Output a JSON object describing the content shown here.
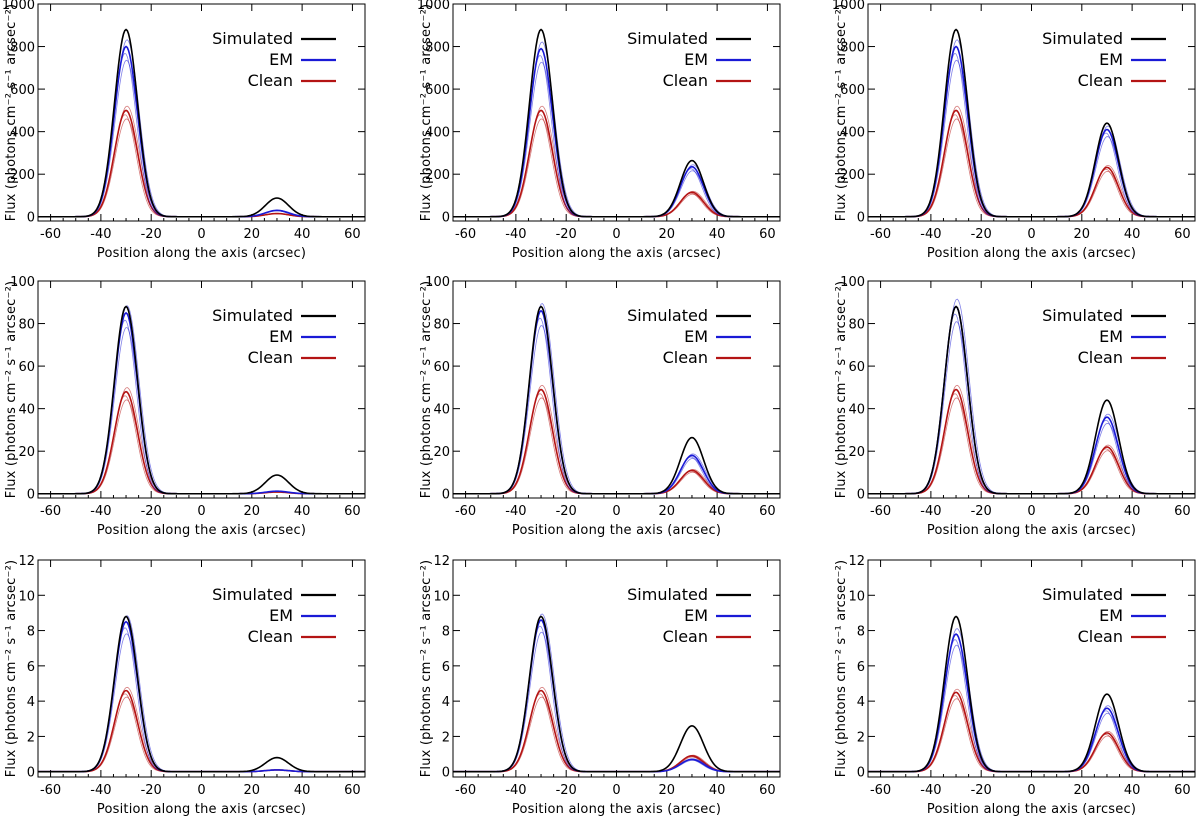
{
  "figure": {
    "xlabel": "Position along the axis (arcsec)",
    "ylabel": "Flux (photons cm⁻² s⁻¹ arcsec⁻²)",
    "legend": [
      {
        "name": "Simulated",
        "color": "#000000"
      },
      {
        "name": "EM",
        "color": "#1a1ad6"
      },
      {
        "name": "Clean",
        "color": "#b41414"
      }
    ]
  },
  "chart_data": [
    {
      "type": "line",
      "row": 0,
      "col": 0,
      "xlim": [
        -65,
        65
      ],
      "ylim": [
        -20,
        1000
      ],
      "yticks": [
        0,
        200,
        400,
        600,
        800,
        1000
      ],
      "xticks": [
        -60,
        -40,
        -20,
        0,
        20,
        40,
        60
      ],
      "xlabel": "Position along the axis (arcsec)",
      "ylabel": "Flux (photons cm⁻² s⁻¹ arcsec⁻²)",
      "peak_positions": [
        -30,
        30
      ],
      "series": [
        {
          "name": "Simulated",
          "peaks": [
            880,
            88
          ]
        },
        {
          "name": "EM",
          "peaks": [
            800,
            30
          ]
        },
        {
          "name": "Clean",
          "peaks": [
            500,
            15
          ]
        }
      ]
    },
    {
      "type": "line",
      "row": 0,
      "col": 1,
      "xlim": [
        -65,
        65
      ],
      "ylim": [
        -20,
        1000
      ],
      "yticks": [
        0,
        200,
        400,
        600,
        800,
        1000
      ],
      "xticks": [
        -60,
        -40,
        -20,
        0,
        20,
        40,
        60
      ],
      "xlabel": "Position along the axis (arcsec)",
      "ylabel": "Flux (photons cm⁻² s⁻¹ arcsec⁻²)",
      "peak_positions": [
        -30,
        30
      ],
      "series": [
        {
          "name": "Simulated",
          "peaks": [
            880,
            264
          ]
        },
        {
          "name": "EM",
          "peaks": [
            790,
            235
          ]
        },
        {
          "name": "Clean",
          "peaks": [
            500,
            115
          ]
        }
      ]
    },
    {
      "type": "line",
      "row": 0,
      "col": 2,
      "xlim": [
        -65,
        65
      ],
      "ylim": [
        -20,
        1000
      ],
      "yticks": [
        0,
        200,
        400,
        600,
        800,
        1000
      ],
      "xticks": [
        -60,
        -40,
        -20,
        0,
        20,
        40,
        60
      ],
      "xlabel": "Position along the axis (arcsec)",
      "ylabel": "Flux (photons cm⁻² s⁻¹ arcsec⁻²)",
      "peak_positions": [
        -30,
        30
      ],
      "series": [
        {
          "name": "Simulated",
          "peaks": [
            880,
            440
          ]
        },
        {
          "name": "EM",
          "peaks": [
            800,
            410
          ]
        },
        {
          "name": "Clean",
          "peaks": [
            500,
            232
          ]
        }
      ]
    },
    {
      "type": "line",
      "row": 1,
      "col": 0,
      "xlim": [
        -65,
        65
      ],
      "ylim": [
        -2,
        100
      ],
      "yticks": [
        0,
        20,
        40,
        60,
        80,
        100
      ],
      "xticks": [
        -60,
        -40,
        -20,
        0,
        20,
        40,
        60
      ],
      "xlabel": "Position along the axis (arcsec)",
      "ylabel": "Flux (photons cm⁻² s⁻¹ arcsec⁻²)",
      "peak_positions": [
        -30,
        30
      ],
      "series": [
        {
          "name": "Simulated",
          "peaks": [
            88,
            8.8
          ]
        },
        {
          "name": "EM",
          "peaks": [
            85,
            1.2
          ]
        },
        {
          "name": "Clean",
          "peaks": [
            48,
            0.8
          ]
        }
      ]
    },
    {
      "type": "line",
      "row": 1,
      "col": 1,
      "xlim": [
        -65,
        65
      ],
      "ylim": [
        -2,
        100
      ],
      "yticks": [
        0,
        20,
        40,
        60,
        80,
        100
      ],
      "xticks": [
        -60,
        -40,
        -20,
        0,
        20,
        40,
        60
      ],
      "xlabel": "Position along the axis (arcsec)",
      "ylabel": "Flux (photons cm⁻² s⁻¹ arcsec⁻²)",
      "peak_positions": [
        -30,
        30
      ],
      "series": [
        {
          "name": "Simulated",
          "peaks": [
            88,
            26.4
          ]
        },
        {
          "name": "EM",
          "peaks": [
            86,
            18
          ]
        },
        {
          "name": "Clean",
          "peaks": [
            49,
            11
          ]
        }
      ]
    },
    {
      "type": "line",
      "row": 1,
      "col": 2,
      "xlim": [
        -65,
        65
      ],
      "ylim": [
        -2,
        100
      ],
      "yticks": [
        0,
        20,
        40,
        60,
        80,
        100
      ],
      "xticks": [
        -60,
        -40,
        -20,
        0,
        20,
        40,
        60
      ],
      "xlabel": "Position along the axis (arcsec)",
      "ylabel": "Flux (photons cm⁻² s⁻¹ arcsec⁻²)",
      "peak_positions": [
        -30,
        30
      ],
      "series": [
        {
          "name": "Simulated",
          "peaks": [
            88,
            44
          ]
        },
        {
          "name": "EM",
          "peaks": [
            88,
            36
          ]
        },
        {
          "name": "Clean",
          "peaks": [
            49,
            22
          ]
        }
      ]
    },
    {
      "type": "line",
      "row": 2,
      "col": 0,
      "xlim": [
        -65,
        65
      ],
      "ylim": [
        -0.3,
        12
      ],
      "yticks": [
        0,
        2,
        4,
        6,
        8,
        10,
        12
      ],
      "xticks": [
        -60,
        -40,
        -20,
        0,
        20,
        40,
        60
      ],
      "xlabel": "Position along the axis (arcsec)",
      "ylabel": "Flux (photons cm⁻² s⁻¹ arcsec⁻²)",
      "peak_positions": [
        -30,
        30
      ],
      "series": [
        {
          "name": "Simulated",
          "peaks": [
            8.8,
            0.8
          ]
        },
        {
          "name": "EM",
          "peaks": [
            8.5,
            0.1
          ]
        },
        {
          "name": "Clean",
          "peaks": [
            4.6,
            0.1
          ]
        }
      ]
    },
    {
      "type": "line",
      "row": 2,
      "col": 1,
      "xlim": [
        -65,
        65
      ],
      "ylim": [
        -0.3,
        12
      ],
      "yticks": [
        0,
        2,
        4,
        6,
        8,
        10,
        12
      ],
      "xticks": [
        -60,
        -40,
        -20,
        0,
        20,
        40,
        60
      ],
      "xlabel": "Position along the axis (arcsec)",
      "ylabel": "Flux (photons cm⁻² s⁻¹ arcsec⁻²)",
      "peak_positions": [
        -30,
        30
      ],
      "series": [
        {
          "name": "Simulated",
          "peaks": [
            8.8,
            2.6
          ]
        },
        {
          "name": "EM",
          "peaks": [
            8.6,
            0.7
          ]
        },
        {
          "name": "Clean",
          "peaks": [
            4.6,
            0.9
          ]
        }
      ]
    },
    {
      "type": "line",
      "row": 2,
      "col": 2,
      "xlim": [
        -65,
        65
      ],
      "ylim": [
        -0.3,
        12
      ],
      "yticks": [
        0,
        2,
        4,
        6,
        8,
        10,
        12
      ],
      "xticks": [
        -60,
        -40,
        -20,
        0,
        20,
        40,
        60
      ],
      "xlabel": "Position along the axis (arcsec)",
      "ylabel": "Flux (photons cm⁻² s⁻¹ arcsec⁻²)",
      "peak_positions": [
        -30,
        30
      ],
      "series": [
        {
          "name": "Simulated",
          "peaks": [
            8.8,
            4.4
          ]
        },
        {
          "name": "EM",
          "peaks": [
            7.8,
            3.6
          ]
        },
        {
          "name": "Clean",
          "peaks": [
            4.5,
            2.2
          ]
        }
      ]
    }
  ]
}
